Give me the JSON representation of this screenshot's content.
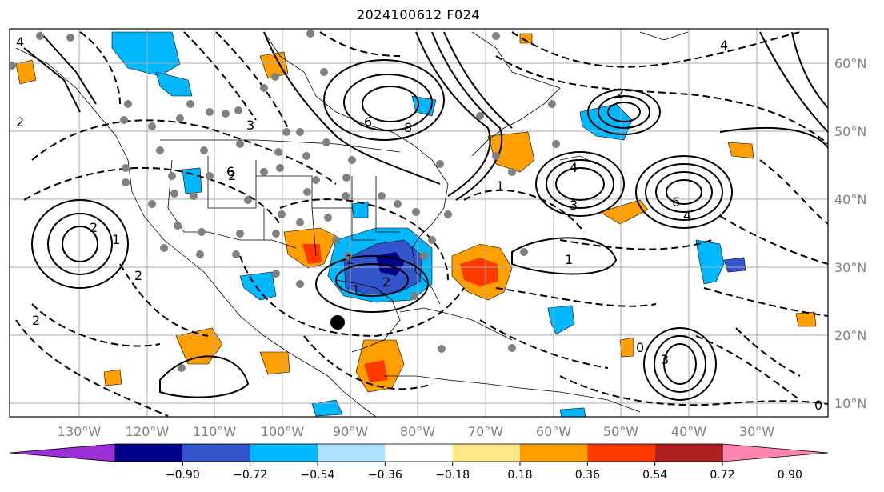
{
  "title": "2024100612 F024",
  "longitude_labels": [
    "130°W",
    "120°W",
    "110°W",
    "100°W",
    "90°W",
    "80°W",
    "70°W",
    "60°W",
    "50°W",
    "40°W",
    "30°W"
  ],
  "latitude_labels": [
    "60°N",
    "50°N",
    "40°N",
    "30°N",
    "20°N",
    "10°N"
  ],
  "colorbar": {
    "ticks": [
      "−0.90",
      "−0.72",
      "−0.54",
      "−0.36",
      "−0.18",
      "0.18",
      "0.36",
      "0.54",
      "0.72",
      "0.90"
    ],
    "colors": [
      "#9b30d9",
      "#000088",
      "#3355cc",
      "#00b8ff",
      "#aee0ff",
      "#ffffff",
      "#ffe88a",
      "#ffa000",
      "#ff3a00",
      "#b02020",
      "#ff85b0"
    ]
  },
  "contour_labels": [
    {
      "text": "4"
    },
    {
      "text": "4"
    },
    {
      "text": "2"
    },
    {
      "text": "6"
    },
    {
      "text": "8"
    },
    {
      "text": "6"
    },
    {
      "text": "4"
    },
    {
      "text": "2"
    },
    {
      "text": "2"
    },
    {
      "text": "1"
    },
    {
      "text": "2"
    },
    {
      "text": "1"
    },
    {
      "text": "6"
    },
    {
      "text": "4"
    },
    {
      "text": "3"
    },
    {
      "text": "1"
    },
    {
      "text": "2"
    },
    {
      "text": "1"
    },
    {
      "text": "3"
    },
    {
      "text": "0"
    },
    {
      "text": "2"
    },
    {
      "text": "0"
    },
    {
      "text": "2"
    },
    {
      "text": "3"
    },
    {
      "text": "1"
    }
  ],
  "marker": {
    "type": "storm-center-dot"
  }
}
